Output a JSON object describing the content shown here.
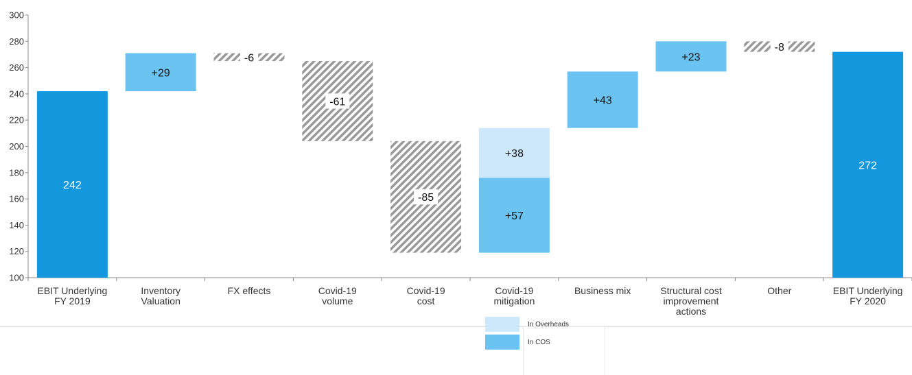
{
  "chart_data": {
    "type": "waterfall",
    "title": "",
    "xlabel": "",
    "ylabel": "",
    "ylim": [
      100,
      300
    ],
    "yticks": [
      100,
      120,
      140,
      160,
      180,
      200,
      220,
      240,
      260,
      280,
      300
    ],
    "grid": false,
    "categories": [
      [
        "EBIT Underlying",
        "FY 2019"
      ],
      [
        "Inventory",
        "Valuation"
      ],
      [
        "FX effects"
      ],
      [
        "Covid-19",
        "volume"
      ],
      [
        "Covid-19",
        "cost"
      ],
      [
        "Covid-19",
        "mitigation"
      ],
      [
        "Business mix"
      ],
      [
        "Structural cost",
        "improvement",
        "actions"
      ],
      [
        "Other"
      ],
      [
        "EBIT Underlying",
        "FY 2020"
      ]
    ],
    "bars": [
      {
        "category": 0,
        "kind": "total",
        "from": 100,
        "to": 242,
        "label": "242"
      },
      {
        "category": 1,
        "kind": "increase",
        "from": 242,
        "to": 271,
        "label": "+29"
      },
      {
        "category": 2,
        "kind": "decrease",
        "from": 271,
        "to": 265,
        "label": "-6"
      },
      {
        "category": 3,
        "kind": "decrease",
        "from": 265,
        "to": 204,
        "label": "-61"
      },
      {
        "category": 4,
        "kind": "decrease",
        "from": 204,
        "to": 119,
        "label": "-85"
      },
      {
        "category": 5,
        "kind": "increase",
        "from": 119,
        "to": 176,
        "label": "+57",
        "segment": "In COS"
      },
      {
        "category": 5,
        "kind": "overheads",
        "from": 176,
        "to": 214,
        "label": "+38",
        "segment": "In Overheads"
      },
      {
        "category": 6,
        "kind": "increase",
        "from": 214,
        "to": 257,
        "label": "+43"
      },
      {
        "category": 7,
        "kind": "increase",
        "from": 257,
        "to": 280,
        "label": "+23"
      },
      {
        "category": 8,
        "kind": "decrease",
        "from": 280,
        "to": 272,
        "label": "-8"
      },
      {
        "category": 9,
        "kind": "total",
        "from": 100,
        "to": 272,
        "label": "272"
      }
    ],
    "legend": [
      {
        "name": "In Overheads",
        "color": "#cce8fa"
      },
      {
        "name": "In COS",
        "color": "#6bc3f2"
      }
    ],
    "legend_position": "bottom-center",
    "colors": {
      "total": "#1498dd",
      "increase": "#6bc3f2",
      "overheads": "#cce8fa",
      "decrease_hatch": "#999999"
    }
  }
}
